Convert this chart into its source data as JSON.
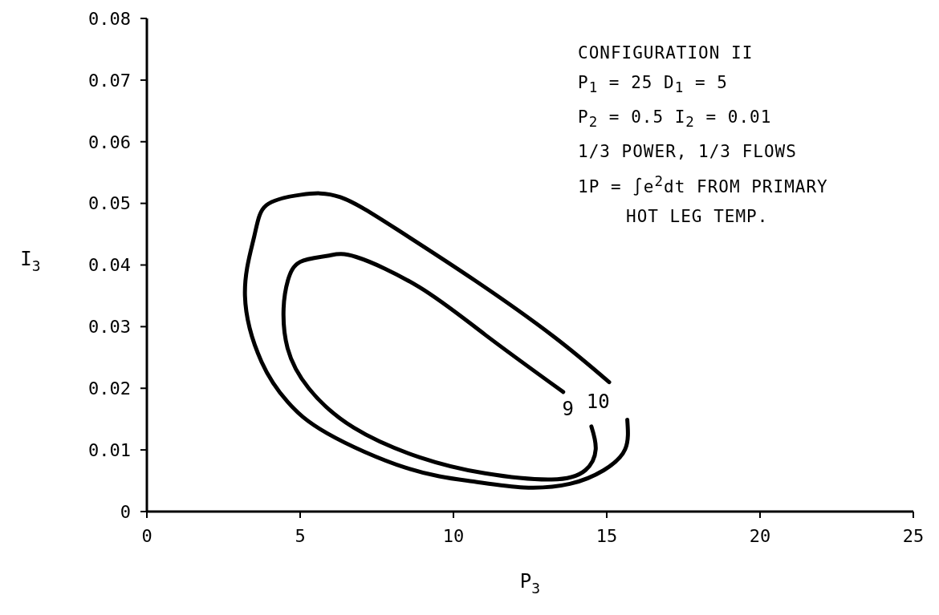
{
  "chart_data": {
    "type": "line",
    "xlabel": "P$_{3}$",
    "ylabel": "I$_{3}$",
    "xlim": [
      0,
      25
    ],
    "xticks": [
      0,
      5,
      10,
      15,
      20,
      25
    ],
    "ylim": [
      0,
      0.08
    ],
    "yticks": [
      0,
      0.01,
      0.02,
      0.03,
      0.04,
      0.05,
      0.06,
      0.07,
      0.08
    ],
    "grid": false,
    "legend": false,
    "marker": "none",
    "line_style": "solid",
    "annotations": [
      "CONFIGURATION II",
      "P$_{1}$ = 25 D$_{1}$ = 5",
      "P$_{2}$ = 0.5 I$_{2}$ = 0.01",
      "1/3 POWER, 1/3 FLOWS",
      "1P = ∫e$^{2}$dt FROM PRIMARY",
      "HOT LEG TEMP."
    ],
    "series": [
      {
        "name": "9",
        "color": "#000000",
        "x": [
          14.5,
          14.64,
          14.3,
          13.2,
          11.03,
          8.9,
          6.75,
          5.28,
          4.59,
          4.46,
          4.6,
          5.0,
          5.9,
          6.83,
          8.89,
          11.03,
          13.58
        ],
        "values": [
          0.0138,
          0.0101,
          0.0067,
          0.0052,
          0.0062,
          0.0088,
          0.0136,
          0.02,
          0.0265,
          0.033,
          0.0375,
          0.0405,
          0.0415,
          0.0413,
          0.0364,
          0.0287,
          0.0194
        ]
      },
      {
        "name": "10",
        "color": "#000000",
        "x": [
          15.67,
          15.6,
          14.9,
          13.8,
          12.3,
          10.6,
          8.45,
          5.88,
          4.59,
          3.74,
          3.2,
          3.5,
          3.9,
          5.03,
          6.31,
          8.12,
          10.7,
          13.27,
          15.08
        ],
        "values": [
          0.0149,
          0.0101,
          0.0067,
          0.0045,
          0.0039,
          0.0049,
          0.0071,
          0.0127,
          0.0178,
          0.0243,
          0.035,
          0.0446,
          0.0497,
          0.0514,
          0.051,
          0.0459,
          0.0375,
          0.0284,
          0.021
        ]
      }
    ]
  }
}
